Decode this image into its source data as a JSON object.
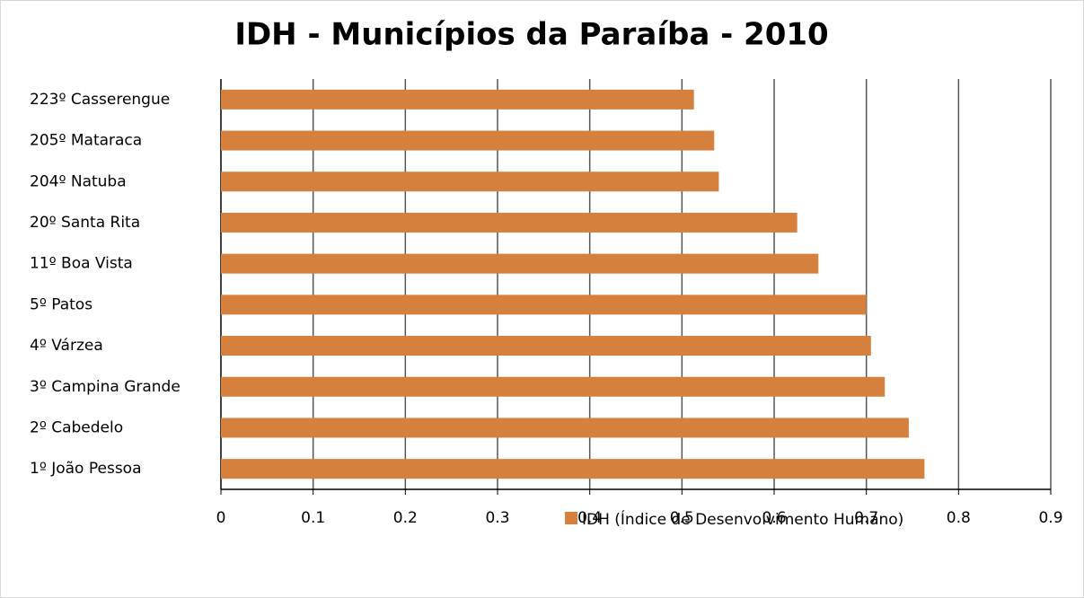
{
  "chart_data": {
    "type": "bar",
    "orientation": "horizontal",
    "title": "IDH - Municípios da Paraíba - 2010",
    "categories": [
      "223º Casserengue",
      "205º Mataraca",
      "204º Natuba",
      "20º Santa Rita",
      "11º Boa Vista",
      "5º Patos",
      "4º Várzea",
      "3º Campina Grande",
      "2º Cabedelo",
      "1º João Pessoa"
    ],
    "series": [
      {
        "name": "IDH (Índice de Desenvolvimento Humano)",
        "color": "#d5803c",
        "values": [
          0.513,
          0.535,
          0.54,
          0.625,
          0.648,
          0.7,
          0.705,
          0.72,
          0.746,
          0.763
        ]
      }
    ],
    "xlim": [
      0,
      0.9
    ],
    "xticks": [
      0,
      0.1,
      0.2,
      0.3,
      0.4,
      0.5,
      0.6,
      0.7,
      0.8,
      0.9
    ],
    "grid": true
  }
}
